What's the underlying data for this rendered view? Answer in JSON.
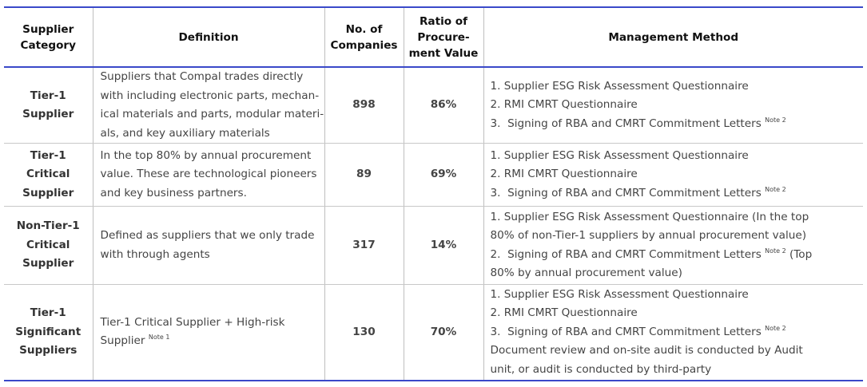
{
  "headers": {
    "category": [
      "Supplier",
      "Category"
    ],
    "definition": "Definition",
    "companies": [
      "No. of",
      "Companies"
    ],
    "ratio": [
      "Ratio of",
      "Procure-",
      "ment Value"
    ],
    "method": "Management Method"
  },
  "rows": [
    {
      "category": [
        "Tier-1",
        "Supplier"
      ],
      "definition": [
        "Suppliers that Compal trades directly",
        "with including electronic parts, mechan-",
        "ical materials and parts, modular materi-",
        "als, and key auxiliary materials"
      ],
      "companies": "898",
      "ratio": "86%",
      "methods": [
        {
          "text": "1.  Supplier ESG Risk Assessment Questionnaire",
          "note": ""
        },
        {
          "text": "2.  RMI CMRT Questionnaire",
          "note": ""
        },
        {
          "text": "3.  Signing of RBA and CMRT Commitment Letters ",
          "note": "Note 2"
        }
      ]
    },
    {
      "category": [
        "Tier-1 Critical",
        "Supplier"
      ],
      "definition": [
        "In the top 80% by annual procurement",
        "value. These are technological pioneers",
        "and key business partners."
      ],
      "companies": "89",
      "ratio": "69%",
      "methods": [
        {
          "text": "1.  Supplier ESG Risk Assessment Questionnaire",
          "note": ""
        },
        {
          "text": "2.  RMI CMRT Questionnaire",
          "note": ""
        },
        {
          "text": "3.  Signing of RBA and CMRT Commitment Letters ",
          "note": "Note 2"
        }
      ]
    },
    {
      "category": [
        "Non-Tier-1",
        "Critical",
        "Supplier"
      ],
      "definition": [
        "Defined as suppliers that we only trade",
        "with through agents"
      ],
      "companies": "317",
      "ratio": "14%",
      "methods": [
        {
          "text": "1.  Supplier ESG Risk Assessment Questionnaire (In the top",
          "note": ""
        },
        {
          "text": "80% of non-Tier-1 suppliers by annual procurement value)",
          "note": ""
        },
        {
          "text": "2.  Signing of RBA and CMRT Commitment Letters ",
          "note": "Note 2",
          "after": " (Top"
        },
        {
          "text": "80% by annual procurement value)",
          "note": ""
        }
      ]
    },
    {
      "category": [
        "Tier-1",
        "Significant",
        "Suppliers"
      ],
      "definition": [
        "Tier-1 Critical Supplier + High-risk",
        "Supplier "
      ],
      "definition_note": "Note 1",
      "companies": "130",
      "ratio": "70%",
      "methods": [
        {
          "text": "1.  Supplier ESG Risk Assessment Questionnaire",
          "note": ""
        },
        {
          "text": "2.  RMI CMRT Questionnaire",
          "note": ""
        },
        {
          "text": "3.  Signing of RBA and CMRT Commitment Letters ",
          "note": "Note 2"
        },
        {
          "text": "Document review and on-site audit is conducted by Audit",
          "note": ""
        },
        {
          "text": "unit, or audit is conducted by third-party",
          "note": ""
        }
      ]
    }
  ]
}
